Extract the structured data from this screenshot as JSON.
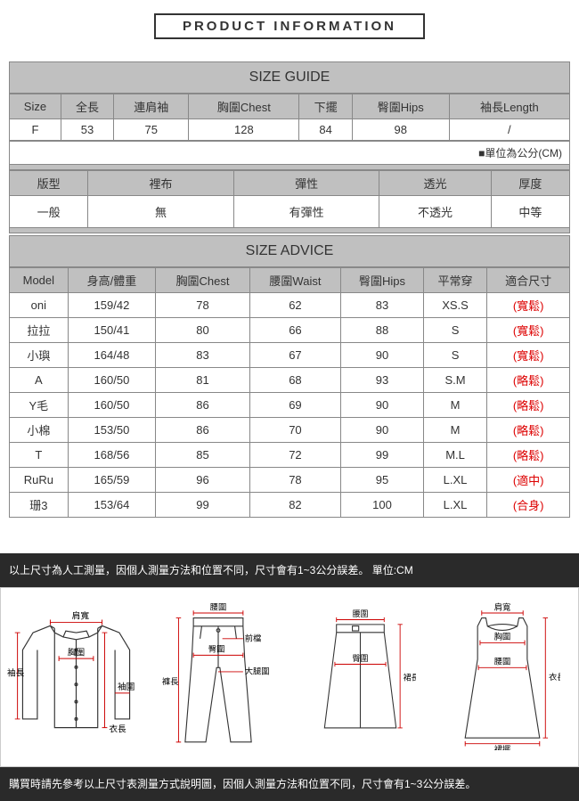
{
  "page_title": "PRODUCT INFORMATION",
  "size_guide": {
    "header": "SIZE GUIDE",
    "columns": [
      "Size",
      "全長",
      "連肩袖",
      "胸圍Chest",
      "下擺",
      "臀圍Hips",
      "袖長Length"
    ],
    "rows": [
      [
        "F",
        "53",
        "75",
        "128",
        "84",
        "98",
        "/"
      ]
    ],
    "unit_note": "■單位為公分(CM)"
  },
  "attributes": {
    "columns": [
      "版型",
      "裡布",
      "彈性",
      "透光",
      "厚度"
    ],
    "rows": [
      [
        "一般",
        "無",
        "有彈性",
        "不透光",
        "中等"
      ]
    ]
  },
  "size_advice": {
    "header": "SIZE ADVICE",
    "columns": [
      "Model",
      "身高/體重",
      "胸圍Chest",
      "腰圍Waist",
      "臀圍Hips",
      "平常穿",
      "適合尺寸"
    ],
    "rows": [
      {
        "cells": [
          "oni",
          "159/42",
          "78",
          "62",
          "83",
          "XS.S"
        ],
        "fit": "(寬鬆)"
      },
      {
        "cells": [
          "拉拉",
          "150/41",
          "80",
          "66",
          "88",
          "S"
        ],
        "fit": "(寬鬆)"
      },
      {
        "cells": [
          "小璵",
          "164/48",
          "83",
          "67",
          "90",
          "S"
        ],
        "fit": "(寬鬆)"
      },
      {
        "cells": [
          "A",
          "160/50",
          "81",
          "68",
          "93",
          "S.M"
        ],
        "fit": "(略鬆)"
      },
      {
        "cells": [
          "Y毛",
          "160/50",
          "86",
          "69",
          "90",
          "M"
        ],
        "fit": "(略鬆)"
      },
      {
        "cells": [
          "小棉",
          "153/50",
          "86",
          "70",
          "90",
          "M"
        ],
        "fit": "(略鬆)"
      },
      {
        "cells": [
          "T",
          "168/56",
          "85",
          "72",
          "99",
          "M.L"
        ],
        "fit": "(略鬆)"
      },
      {
        "cells": [
          "RuRu",
          "165/59",
          "96",
          "78",
          "95",
          "L.XL"
        ],
        "fit": "(適中)"
      },
      {
        "cells": [
          "珊3",
          "153/64",
          "99",
          "82",
          "100",
          "L.XL"
        ],
        "fit": "(合身)"
      }
    ]
  },
  "diagram": {
    "top_note": "以上尺寸為人工測量，因個人測量方法和位置不同，尺寸會有1~3公分誤差。 單位:CM",
    "bottom_note": "購買時請先參考以上尺寸表測量方式說明圖，因個人測量方法和位置不同，尺寸會有1~3公分誤差。",
    "labels": {
      "shoulder": "肩寬",
      "chest": "胸圍",
      "sleeve": "袖長",
      "cuff": "袖圍",
      "length": "衣長",
      "waist": "腰圍",
      "front_rise": "前檔",
      "hip": "臀圍",
      "thigh": "大腿圍",
      "pant_length": "褲長",
      "skirt_length": "裙長",
      "hem": "裙擺"
    }
  },
  "colors": {
    "header_bg": "#c0c0c0",
    "border": "#888888",
    "red": "#dd0000",
    "dark_bar": "#2a2a2a",
    "measure_line": "#cc0000"
  }
}
